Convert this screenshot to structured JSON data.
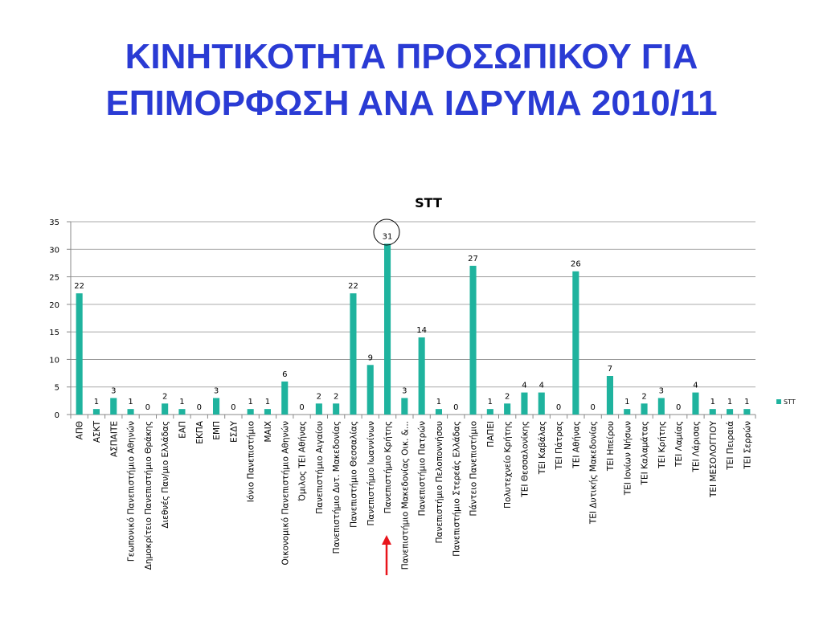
{
  "chart_data": {
    "type": "bar",
    "title": [
      "ΚΙΝΗΤΙΚΟΤΗΤΑ ΠΡΟΣΩΠΙΚΟΥ ΓΙΑ",
      "ΕΠΙΜΟΡΦΩΣΗ ΑΝΑ ΙΔΡΥΜΑ 2010/11"
    ],
    "chart_title": "STT",
    "categories": [
      "ΑΠΘ",
      "ΑΣΚΤ",
      "ΑΣΠΑΙΤΕ",
      "Γεωπονικό Πανεπιστήμιο Αθηνών",
      "Δημοκρίτειο Πανεπιστήμιο Θράκης",
      "Διεθνές Παν/μιο Ελλάδας",
      "ΕΑΠ",
      "ΕΚΠΑ",
      "ΕΜΠ",
      "ΕΣΔΥ",
      "Ιόνιο Πανεπιστήμιο",
      "ΜΑΙΧ",
      "Οικονομικό Πανεπιστήμιο Αθηνών",
      "Όμιλος ΤΕΙ Αθήνας",
      "Πανεπιστήμιο Αιγαίου",
      "Πανεπιστήμιο Δυτ. Μακεδονίας",
      "Πανεπιστήμιο Θεσσαλίας",
      "Πανεπιστήμιο Ιωαννίνων",
      "Πανεπιστήμιο Κρήτης",
      "Πανεπιστήμιο Μακεδονίας Οικ. &...",
      "Πανεπιστήμιο Πατρών",
      "Πανεπιστήμιο Πελοποννήσου",
      "Πανεπιστήμιο Στερεάς Ελλάδας",
      "Πάντειο Πανεπιστήμιο",
      "ΠΑΠΕΙ",
      "Πολυτεχνείο Κρήτης",
      "ΤΕΙ Θεσσαλονίκης",
      "ΤΕΙ Καβάλας",
      "ΤΕΙ Πάτρας",
      "ΤΕΙ Αθήνας",
      "ΤΕΙ Δυτικής Μακεδονίας",
      "ΤΕΙ Ηπείρου",
      "ΤΕΙ Ιονίων Νήσων",
      "ΤΕΙ Καλαμάτας",
      "ΤΕΙ Κρήτης",
      "ΤΕΙ Λαμίας",
      "ΤΕΙ Λάρισας",
      "ΤΕΙ ΜΕΣΟΛΟΓΓΙΟΥ",
      "ΤΕΙ Πειραιά",
      "ΤΕΙ Σερρών"
    ],
    "series": [
      {
        "name": "STT",
        "color": "#1fb39e",
        "values": [
          22,
          1,
          3,
          1,
          0,
          2,
          1,
          0,
          3,
          0,
          1,
          1,
          6,
          0,
          2,
          2,
          22,
          9,
          31,
          3,
          14,
          1,
          0,
          27,
          1,
          2,
          4,
          4,
          0,
          26,
          0,
          7,
          1,
          2,
          3,
          0,
          4,
          1,
          1,
          1
        ]
      }
    ],
    "ylim": [
      0,
      35
    ],
    "yticks": [
      0,
      5,
      10,
      15,
      20,
      25,
      30,
      35
    ],
    "grid": true,
    "legend": "right"
  }
}
